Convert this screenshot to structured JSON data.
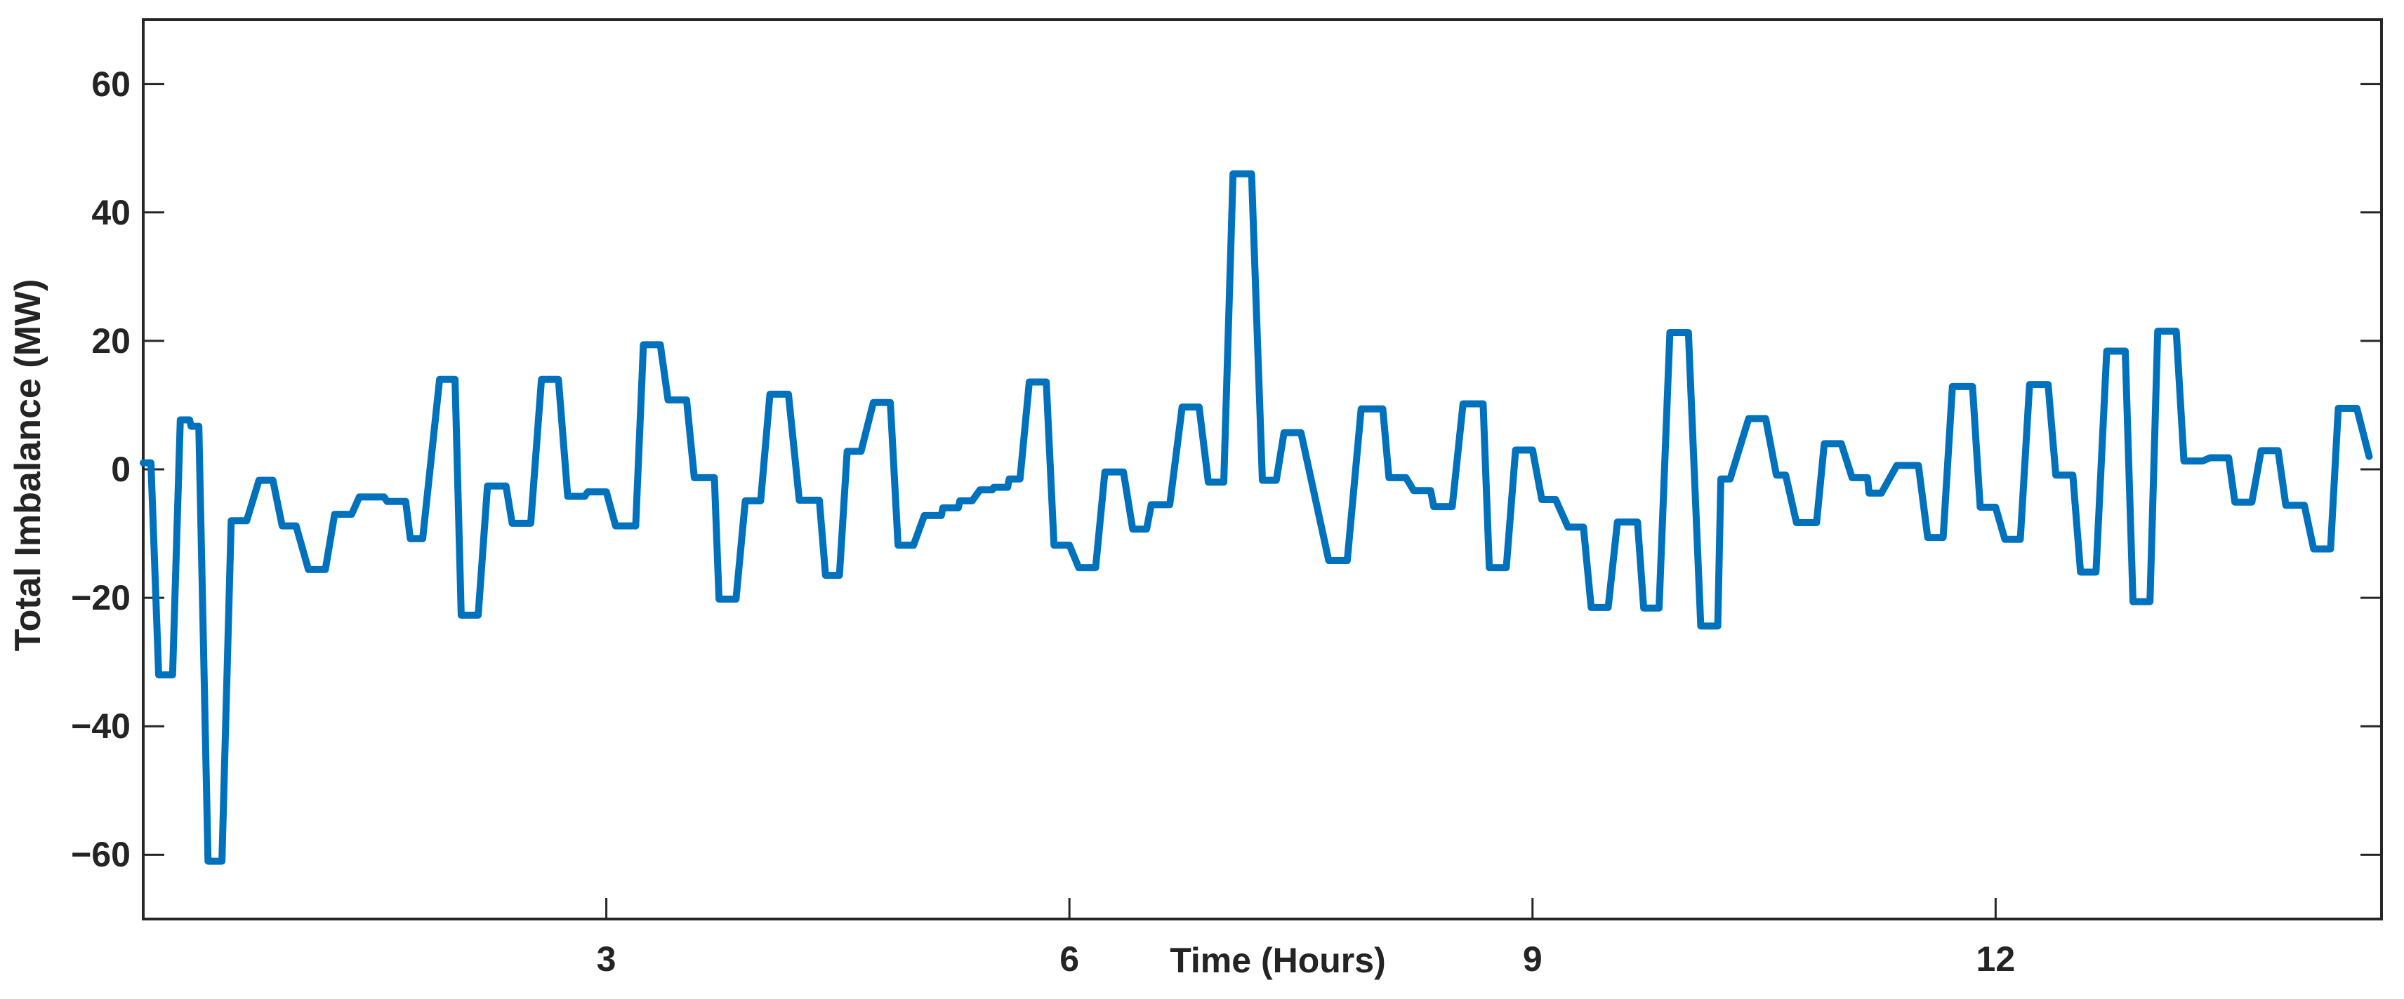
{
  "figure": {
    "background_color": "#ffffff",
    "axes_color": "#262626",
    "tick_label_color": "#242424"
  },
  "chart_data": {
    "type": "line",
    "title": "",
    "xlabel": "Time (Hours)",
    "ylabel": "Total Imbalance (MW)",
    "xlim": [
      0,
      14.5
    ],
    "ylim": [
      -70,
      70
    ],
    "xticks": [
      3,
      6,
      9,
      12
    ],
    "xtick_labels": [
      "3",
      "6",
      "9",
      "12"
    ],
    "yticks": [
      60,
      40,
      20,
      0,
      -20,
      -40,
      -60
    ],
    "ytick_labels": [
      "60",
      "40",
      "20",
      "0",
      "−20",
      "−40",
      "−60"
    ],
    "grid": false,
    "legend": null,
    "box": true,
    "tick_direction": "in",
    "line_color": "#0072BD",
    "line_width": 10,
    "series_name": "total-imbalance",
    "points": [
      [
        0.0,
        1.0
      ],
      [
        0.05,
        1.0
      ],
      [
        0.1,
        -32
      ],
      [
        0.19,
        -32
      ],
      [
        0.24,
        7.7
      ],
      [
        0.3,
        7.7
      ],
      [
        0.31,
        6.7
      ],
      [
        0.36,
        6.7
      ],
      [
        0.42,
        -61
      ],
      [
        0.51,
        -61
      ],
      [
        0.57,
        -8.0
      ],
      [
        0.67,
        -8.0
      ],
      [
        0.75,
        -1.7
      ],
      [
        0.84,
        -1.7
      ],
      [
        0.9,
        -8.8
      ],
      [
        0.99,
        -8.8
      ],
      [
        1.07,
        -15.6
      ],
      [
        1.18,
        -15.6
      ],
      [
        1.24,
        -7.0
      ],
      [
        1.35,
        -7.0
      ],
      [
        1.4,
        -4.3
      ],
      [
        1.56,
        -4.3
      ],
      [
        1.58,
        -5.0
      ],
      [
        1.7,
        -5.0
      ],
      [
        1.73,
        -10.8
      ],
      [
        1.81,
        -10.8
      ],
      [
        1.92,
        14.0
      ],
      [
        2.02,
        14.0
      ],
      [
        2.06,
        -22.7
      ],
      [
        2.17,
        -22.7
      ],
      [
        2.23,
        -2.6
      ],
      [
        2.35,
        -2.6
      ],
      [
        2.39,
        -8.4
      ],
      [
        2.51,
        -8.4
      ],
      [
        2.58,
        14.0
      ],
      [
        2.69,
        14.0
      ],
      [
        2.75,
        -4.2
      ],
      [
        2.86,
        -4.2
      ],
      [
        2.88,
        -3.5
      ],
      [
        3.0,
        -3.5
      ],
      [
        3.06,
        -8.8
      ],
      [
        3.19,
        -8.8
      ],
      [
        3.24,
        19.4
      ],
      [
        3.35,
        19.4
      ],
      [
        3.4,
        10.8
      ],
      [
        3.52,
        10.8
      ],
      [
        3.57,
        -1.3
      ],
      [
        3.7,
        -1.3
      ],
      [
        3.73,
        -20.2
      ],
      [
        3.84,
        -20.2
      ],
      [
        3.9,
        -4.9
      ],
      [
        4.0,
        -4.9
      ],
      [
        4.06,
        11.7
      ],
      [
        4.18,
        11.7
      ],
      [
        4.25,
        -4.8
      ],
      [
        4.38,
        -4.8
      ],
      [
        4.42,
        -16.5
      ],
      [
        4.51,
        -16.5
      ],
      [
        4.56,
        2.8
      ],
      [
        4.65,
        2.8
      ],
      [
        4.73,
        10.4
      ],
      [
        4.84,
        10.4
      ],
      [
        4.89,
        -11.8
      ],
      [
        4.99,
        -11.8
      ],
      [
        5.06,
        -7.2
      ],
      [
        5.17,
        -7.2
      ],
      [
        5.18,
        -6.0
      ],
      [
        5.28,
        -6.0
      ],
      [
        5.29,
        -4.9
      ],
      [
        5.37,
        -4.9
      ],
      [
        5.42,
        -3.2
      ],
      [
        5.5,
        -3.2
      ],
      [
        5.51,
        -2.8
      ],
      [
        5.6,
        -2.8
      ],
      [
        5.61,
        -1.5
      ],
      [
        5.68,
        -1.5
      ],
      [
        5.74,
        13.6
      ],
      [
        5.85,
        13.6
      ],
      [
        5.9,
        -11.8
      ],
      [
        6.0,
        -11.8
      ],
      [
        6.06,
        -15.3
      ],
      [
        6.17,
        -15.3
      ],
      [
        6.23,
        -0.4
      ],
      [
        6.35,
        -0.4
      ],
      [
        6.41,
        -9.3
      ],
      [
        6.5,
        -9.3
      ],
      [
        6.53,
        -5.5
      ],
      [
        6.65,
        -5.5
      ],
      [
        6.73,
        9.7
      ],
      [
        6.84,
        9.7
      ],
      [
        6.9,
        -2.0
      ],
      [
        7.0,
        -2.0
      ],
      [
        7.06,
        46.0
      ],
      [
        7.18,
        46.0
      ],
      [
        7.25,
        -1.7
      ],
      [
        7.34,
        -1.7
      ],
      [
        7.39,
        5.7
      ],
      [
        7.5,
        5.7
      ],
      [
        7.68,
        -14.2
      ],
      [
        7.8,
        -14.2
      ],
      [
        7.89,
        9.4
      ],
      [
        8.03,
        9.4
      ],
      [
        8.07,
        -1.3
      ],
      [
        8.18,
        -1.3
      ],
      [
        8.23,
        -3.3
      ],
      [
        8.34,
        -3.3
      ],
      [
        8.36,
        -5.8
      ],
      [
        8.48,
        -5.8
      ],
      [
        8.55,
        10.2
      ],
      [
        8.68,
        10.2
      ],
      [
        8.72,
        -15.3
      ],
      [
        8.83,
        -15.3
      ],
      [
        8.89,
        3.0
      ],
      [
        9.0,
        3.0
      ],
      [
        9.06,
        -4.7
      ],
      [
        9.15,
        -4.7
      ],
      [
        9.23,
        -9.0
      ],
      [
        9.33,
        -9.0
      ],
      [
        9.38,
        -21.5
      ],
      [
        9.49,
        -21.5
      ],
      [
        9.55,
        -8.2
      ],
      [
        9.68,
        -8.2
      ],
      [
        9.72,
        -21.6
      ],
      [
        9.82,
        -21.6
      ],
      [
        9.89,
        21.3
      ],
      [
        10.01,
        21.3
      ],
      [
        10.09,
        -24.4
      ],
      [
        10.2,
        -24.4
      ],
      [
        10.22,
        -1.5
      ],
      [
        10.28,
        -1.5
      ],
      [
        10.4,
        7.9
      ],
      [
        10.51,
        7.9
      ],
      [
        10.58,
        -0.9
      ],
      [
        10.64,
        -0.9
      ],
      [
        10.71,
        -8.3
      ],
      [
        10.84,
        -8.3
      ],
      [
        10.89,
        4.0
      ],
      [
        11.0,
        4.0
      ],
      [
        11.07,
        -1.3
      ],
      [
        11.17,
        -1.3
      ],
      [
        11.18,
        -3.7
      ],
      [
        11.26,
        -3.7
      ],
      [
        11.36,
        0.6
      ],
      [
        11.5,
        0.6
      ],
      [
        11.56,
        -10.6
      ],
      [
        11.66,
        -10.6
      ],
      [
        11.72,
        12.9
      ],
      [
        11.85,
        12.9
      ],
      [
        11.9,
        -5.9
      ],
      [
        12.0,
        -5.9
      ],
      [
        12.06,
        -10.9
      ],
      [
        12.16,
        -10.9
      ],
      [
        12.22,
        13.2
      ],
      [
        12.34,
        13.2
      ],
      [
        12.39,
        -0.9
      ],
      [
        12.5,
        -0.9
      ],
      [
        12.55,
        -16.0
      ],
      [
        12.65,
        -16.0
      ],
      [
        12.72,
        18.4
      ],
      [
        12.84,
        18.4
      ],
      [
        12.89,
        -20.6
      ],
      [
        13.0,
        -20.6
      ],
      [
        13.05,
        21.5
      ],
      [
        13.17,
        21.5
      ],
      [
        13.22,
        1.3
      ],
      [
        13.34,
        1.3
      ],
      [
        13.39,
        1.8
      ],
      [
        13.51,
        1.8
      ],
      [
        13.55,
        -5.1
      ],
      [
        13.66,
        -5.1
      ],
      [
        13.72,
        2.9
      ],
      [
        13.83,
        2.9
      ],
      [
        13.88,
        -5.6
      ],
      [
        14.0,
        -5.6
      ],
      [
        14.06,
        -12.4
      ],
      [
        14.17,
        -12.4
      ],
      [
        14.22,
        9.5
      ],
      [
        14.34,
        9.5
      ],
      [
        14.42,
        2.0
      ]
    ]
  }
}
